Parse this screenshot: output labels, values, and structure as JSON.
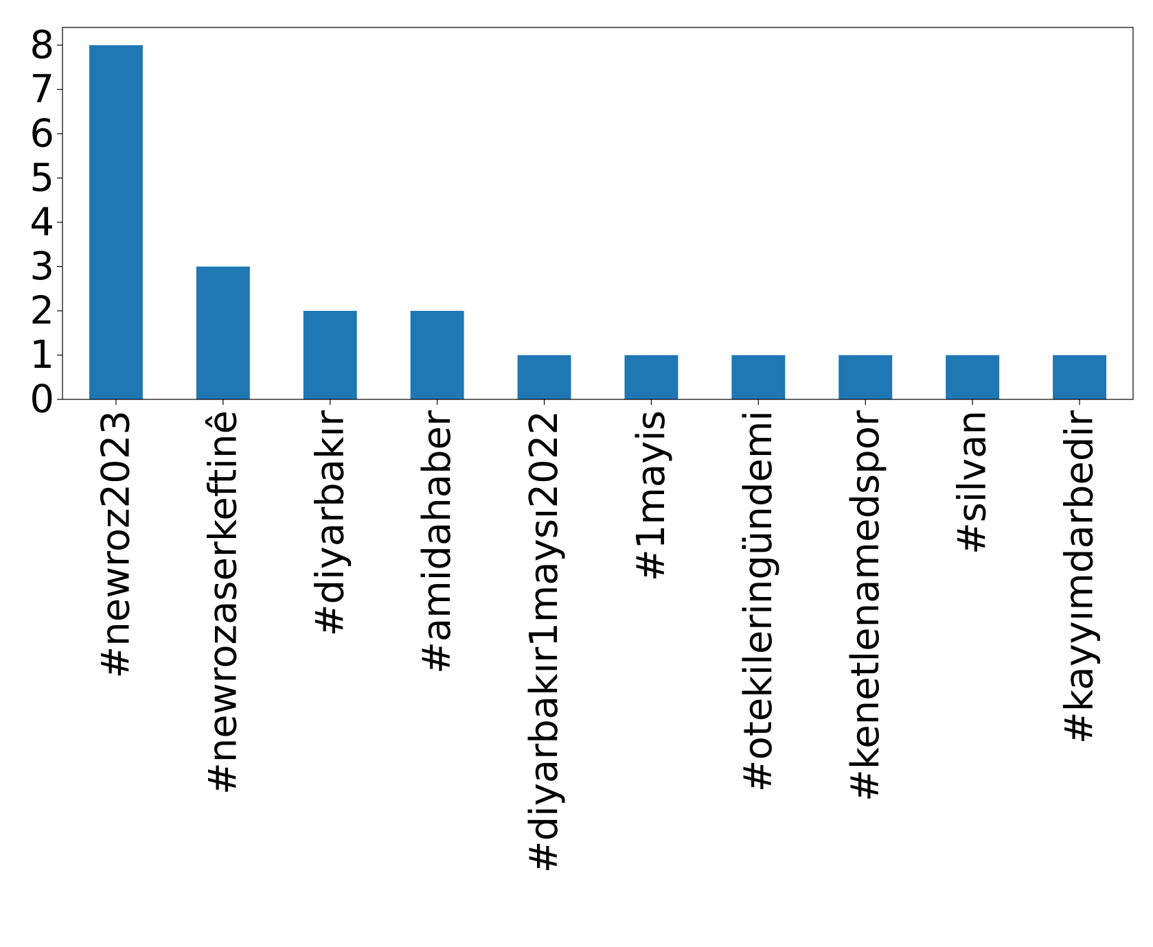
{
  "chart_data": {
    "type": "bar",
    "categories": [
      "#newroz2023",
      "#newrozaserkeftinê",
      "#diyarbakır",
      "#amidahaber",
      "#diyarbakır1maysı2022",
      "#1mayis",
      "#otekileringündemi",
      "#kenetlenamedspor",
      "#silvan",
      "#kayyımdarbedir"
    ],
    "values": [
      8,
      3,
      2,
      2,
      1,
      1,
      1,
      1,
      1,
      1
    ],
    "ylim": [
      0,
      8.4
    ],
    "yticks": [
      0,
      1,
      2,
      3,
      4,
      5,
      6,
      7,
      8
    ],
    "title": "",
    "xlabel": "",
    "ylabel": "",
    "grid": false,
    "legend": "none",
    "bar_color": "#1f77b4",
    "x_tick_rotation_deg": 90
  }
}
